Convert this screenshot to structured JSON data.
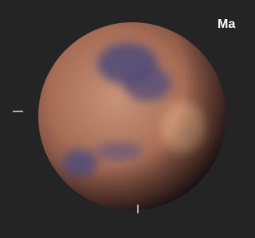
{
  "label": "Ma"
}
